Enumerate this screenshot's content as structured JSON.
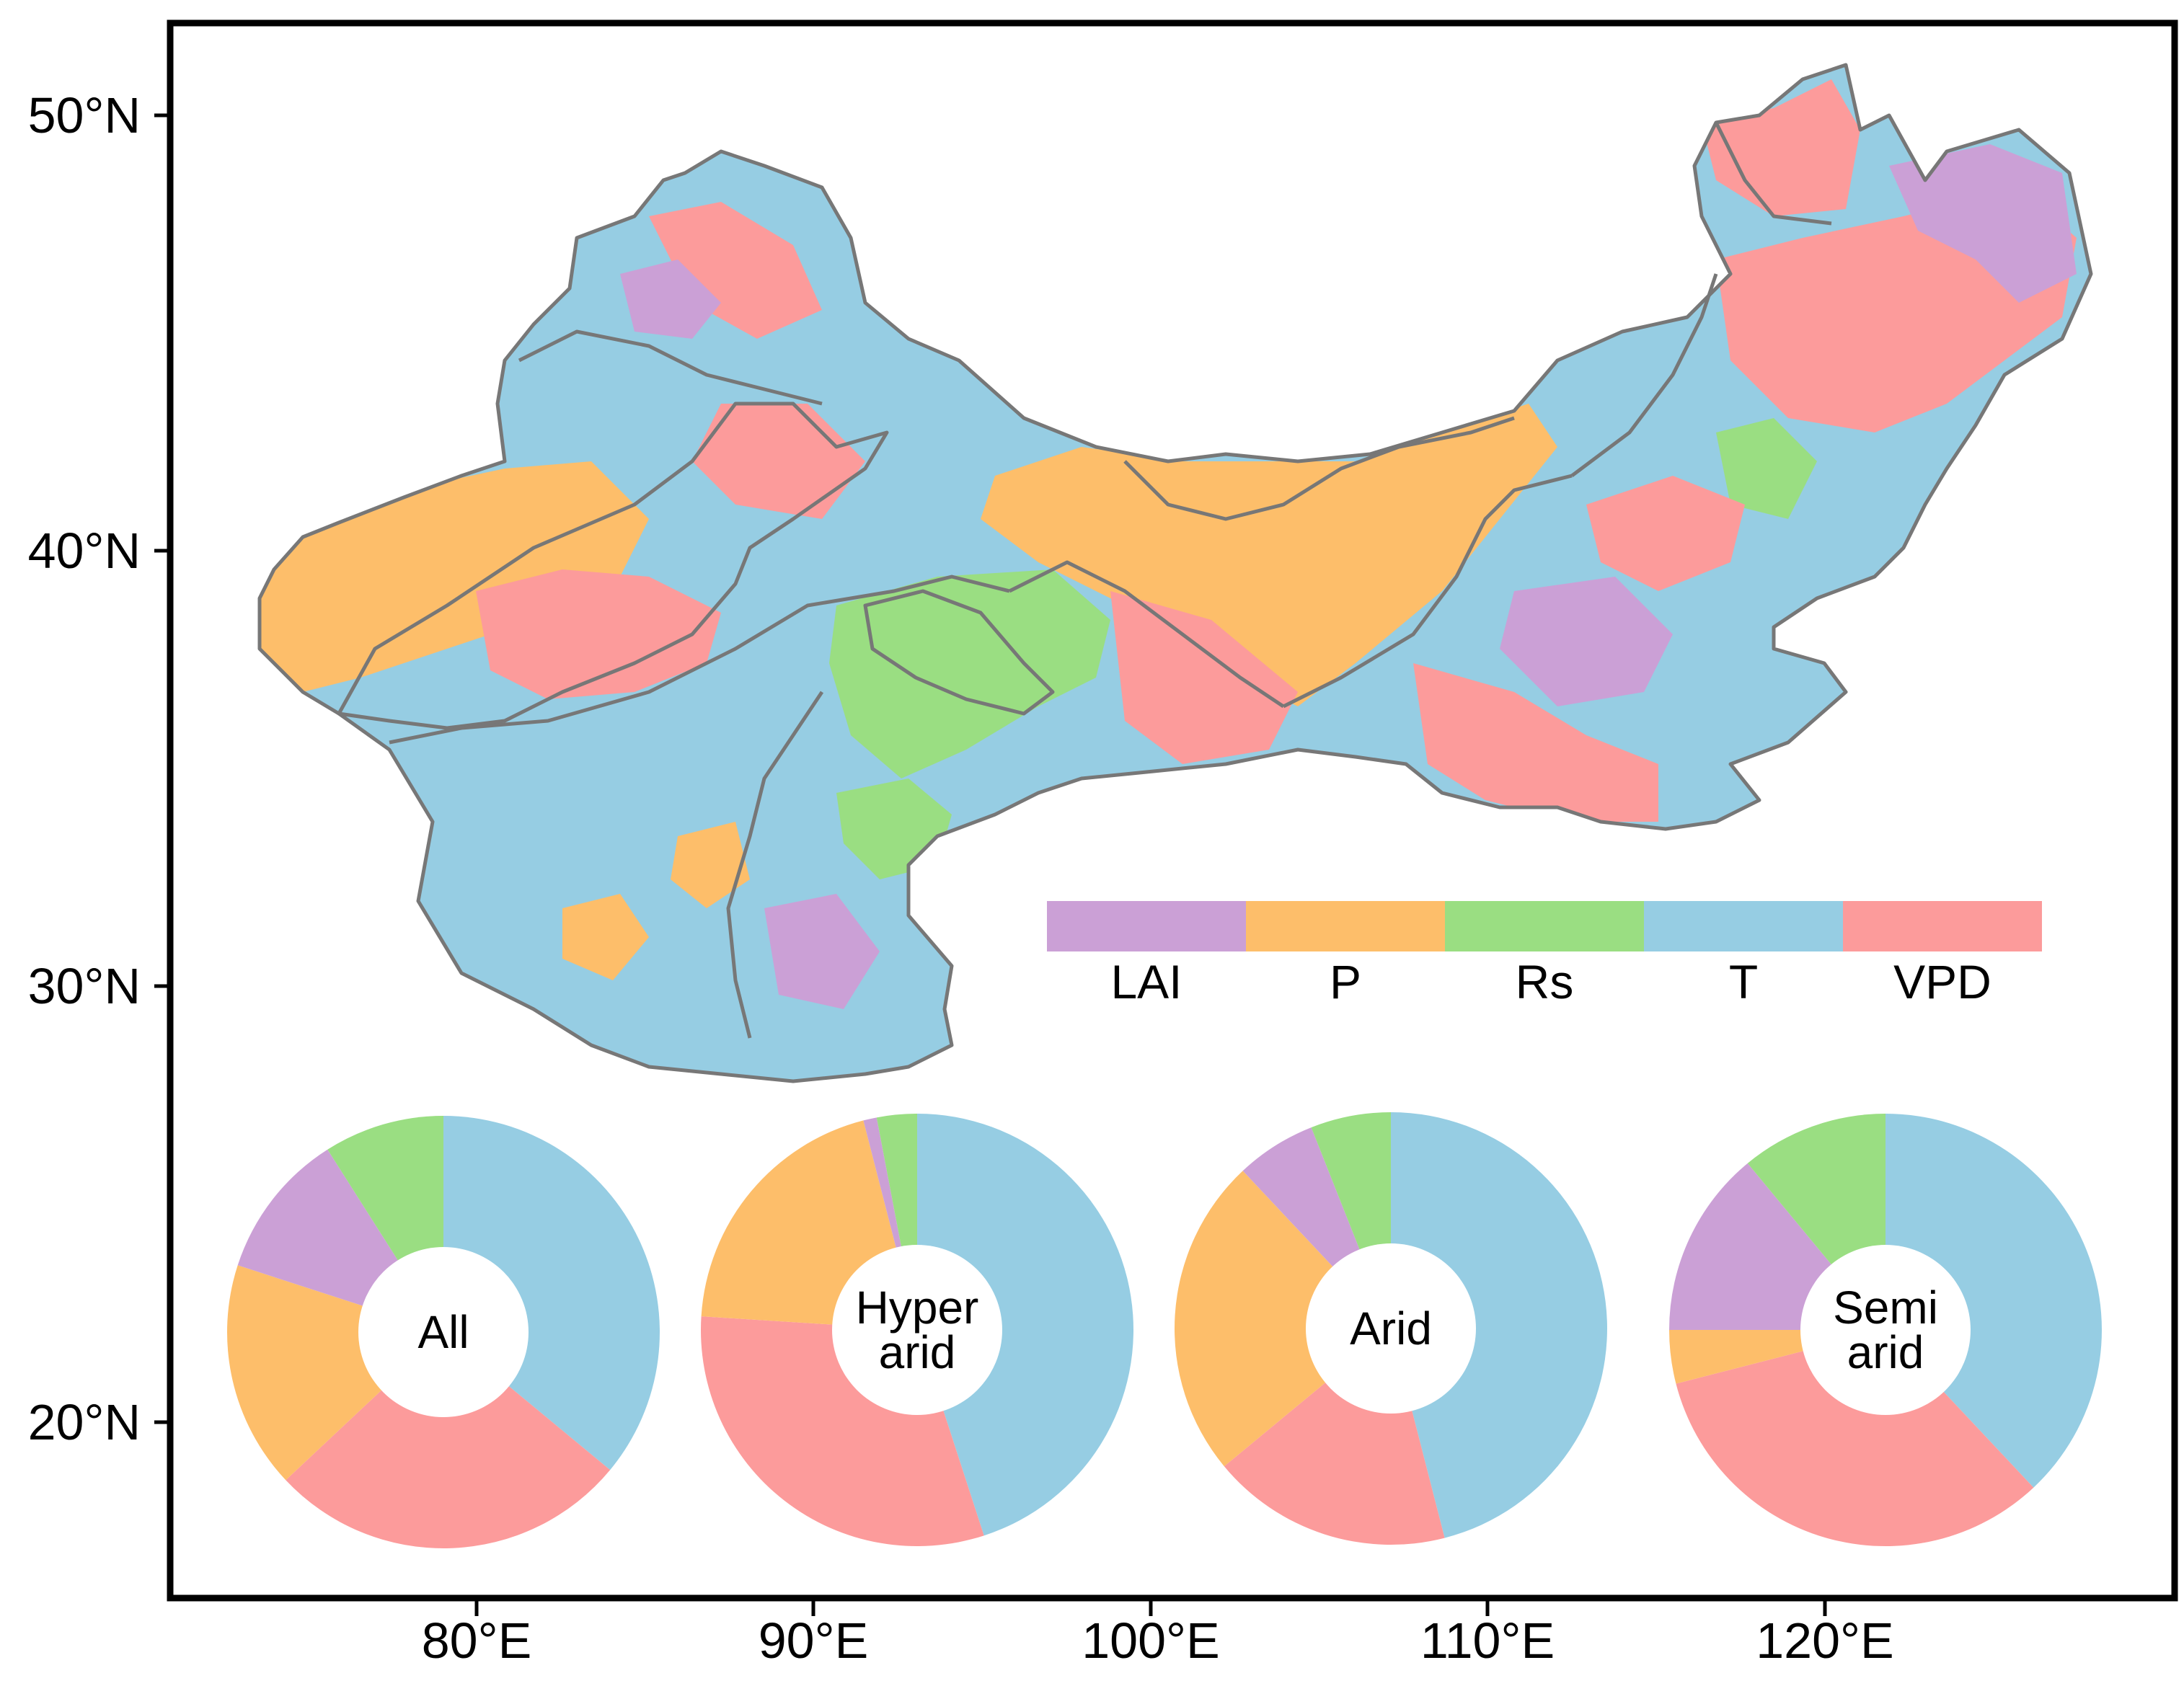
{
  "map": {
    "y_ticks": [
      "50°N",
      "40°N",
      "30°N",
      "20°N"
    ],
    "x_ticks": [
      "80°E",
      "90°E",
      "100°E",
      "110°E",
      "120°E"
    ]
  },
  "legend": {
    "items": [
      {
        "label": "LAI",
        "color": "#cba0d6"
      },
      {
        "label": "P",
        "color": "#fdbe6a"
      },
      {
        "label": "Rs",
        "color": "#9ade82"
      },
      {
        "label": "T",
        "color": "#96cde3"
      },
      {
        "label": "VPD",
        "color": "#fc9b9b"
      }
    ]
  },
  "colors": {
    "LAI": "#cba0d6",
    "P": "#fdbe6a",
    "Rs": "#9ade82",
    "T": "#96cde3",
    "VPD": "#fc9b9b",
    "boundary": "#777777",
    "frame": "#000000"
  },
  "chart_data": {
    "type": "pie",
    "categories": [
      "T",
      "VPD",
      "P",
      "LAI",
      "Rs"
    ],
    "charts": [
      {
        "label_lines": [
          "All"
        ],
        "values": [
          36,
          27,
          17,
          11,
          9
        ]
      },
      {
        "label_lines": [
          "Hyper",
          "arid"
        ],
        "values": [
          45,
          31,
          20,
          1,
          3
        ]
      },
      {
        "label_lines": [
          "Arid"
        ],
        "values": [
          46,
          18,
          24,
          6,
          6
        ]
      },
      {
        "label_lines": [
          "Semi",
          "arid"
        ],
        "values": [
          38,
          33,
          4,
          14,
          11
        ]
      }
    ]
  }
}
